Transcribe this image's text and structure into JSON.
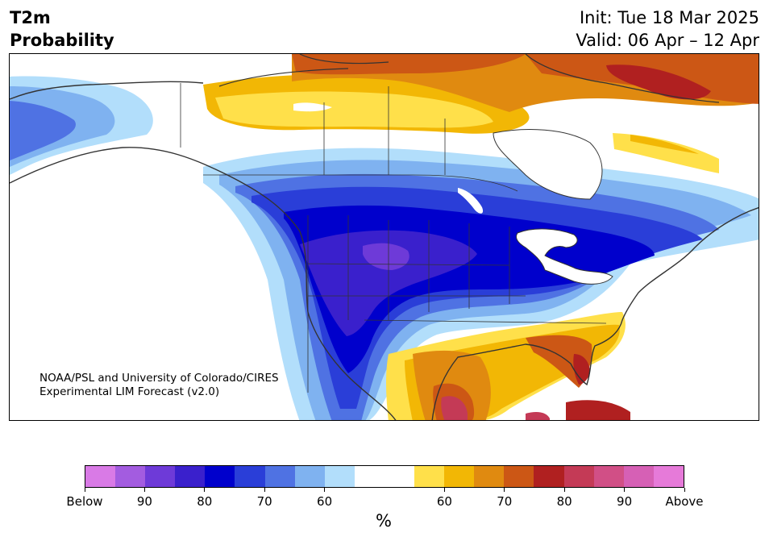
{
  "header": {
    "variable": "T2m",
    "field": "Probability",
    "init": "Init: Tue 18 Mar 2025",
    "valid": "Valid: 06 Apr – 12 Apr"
  },
  "credit": {
    "line1": "NOAA/PSL and University of Colorado/CIRES",
    "line2": "Experimental LIM Forecast (v2.0)"
  },
  "colorbar": {
    "colors": [
      "#d97ae6",
      "#a35ce0",
      "#6e3ad8",
      "#3a20cc",
      "#0000cc",
      "#2a3ed8",
      "#4f72e3",
      "#7fb2f0",
      "#b2defb",
      "#ffffff",
      "#ffffff",
      "#ffe04a",
      "#f2b705",
      "#e08a10",
      "#cc5715",
      "#b02020",
      "#c43a56",
      "#d14f86",
      "#d660b5",
      "#e67ad9"
    ],
    "ticks": [
      "Below",
      "90",
      "80",
      "70",
      "60",
      "60",
      "70",
      "80",
      "90",
      "Above"
    ],
    "unit": "%"
  }
}
